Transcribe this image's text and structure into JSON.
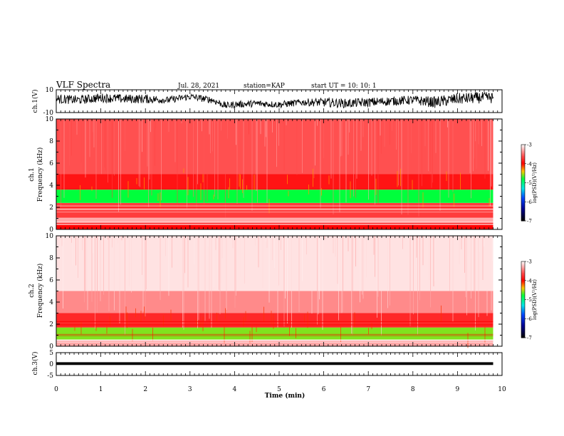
{
  "header": {
    "title": "VLF Spectra",
    "date": "Jul. 28, 2021",
    "station": "station=KAP",
    "start": "start UT =  10: 10: 1"
  },
  "chart_data": [
    {
      "type": "line",
      "name": "ch1-waveform",
      "ylabel": "ch.1(V)",
      "ylim": [
        -10,
        10
      ],
      "y_tick_labels": [
        "10",
        "-10"
      ],
      "xlim": [
        0,
        10
      ],
      "x_end": 9.8,
      "x_samples": [
        0,
        0.5,
        1,
        1.5,
        2,
        2.5,
        3,
        3.5,
        3.8,
        4,
        4.5,
        5,
        5.5,
        6,
        6.5,
        7,
        7.5,
        8,
        8.5,
        9,
        9.5,
        9.8
      ],
      "y_centers": [
        2,
        1,
        3,
        2,
        2,
        1,
        4,
        1,
        -4,
        -3,
        -2,
        -3,
        -1,
        -1,
        -2,
        -1,
        0,
        1,
        -1,
        2,
        3,
        3
      ],
      "y_envelope": [
        4,
        4,
        4,
        4,
        4,
        3,
        3,
        3,
        3,
        3,
        3,
        3,
        3,
        4,
        4,
        4,
        4,
        4,
        5,
        5,
        5,
        5
      ]
    },
    {
      "type": "heatmap",
      "name": "ch1-spectrogram",
      "ylabel": "ch.1\nFrequency (kHz)",
      "ylim": [
        0,
        10
      ],
      "y_tick_labels": [
        "0",
        "2",
        "4",
        "6",
        "8",
        "10"
      ],
      "xlim": [
        0,
        10
      ],
      "x_end": 9.8,
      "color_bands_khz": [
        {
          "from": 0.0,
          "to": 0.4,
          "level": -4.0
        },
        {
          "from": 0.4,
          "to": 1.0,
          "level": -3.3
        },
        {
          "from": 1.0,
          "to": 2.4,
          "level": -3.7
        },
        {
          "from": 2.4,
          "to": 3.6,
          "level": -4.8
        },
        {
          "from": 3.6,
          "to": 5.0,
          "level": -3.9
        },
        {
          "from": 5.0,
          "to": 10.0,
          "level": -3.6
        }
      ],
      "colorbar": {
        "min": -7,
        "max": -3,
        "tick_labels": [
          "-3",
          "-4",
          "-5",
          "-6",
          "-7"
        ],
        "label": "log(PSD)(V²/Hz)"
      }
    },
    {
      "type": "heatmap",
      "name": "ch2-spectrogram",
      "ylabel": "ch.2\nFrequency (kHz)",
      "ylim": [
        0,
        10
      ],
      "y_tick_labels": [
        "0",
        "2",
        "4",
        "6",
        "8",
        "10"
      ],
      "xlim": [
        0,
        10
      ],
      "x_end": 9.8,
      "color_bands_khz": [
        {
          "from": 0.0,
          "to": 0.6,
          "level": -3.3
        },
        {
          "from": 0.6,
          "to": 1.7,
          "level": -4.6
        },
        {
          "from": 1.7,
          "to": 3.0,
          "level": -3.8
        },
        {
          "from": 3.0,
          "to": 5.0,
          "level": -3.4
        },
        {
          "from": 5.0,
          "to": 10.0,
          "level": -3.1
        }
      ],
      "colorbar": {
        "min": -7,
        "max": -3,
        "tick_labels": [
          "-3",
          "-4",
          "-5",
          "-6",
          "-7"
        ],
        "label": "log(PSD)(V²/Hz)"
      }
    },
    {
      "type": "line",
      "name": "ch3-waveform",
      "ylabel": "ch.3(V)",
      "ylim": [
        -5,
        5
      ],
      "y_tick_labels": [
        "5",
        "0",
        "-5"
      ],
      "xlim": [
        0,
        10
      ],
      "x_end": 9.8,
      "y_center": 0.2,
      "y_envelope": 0.6,
      "xlabel": "Time (min)",
      "x_tick_labels": [
        "0",
        "1",
        "2",
        "3",
        "4",
        "5",
        "6",
        "7",
        "8",
        "9",
        "10"
      ]
    }
  ]
}
